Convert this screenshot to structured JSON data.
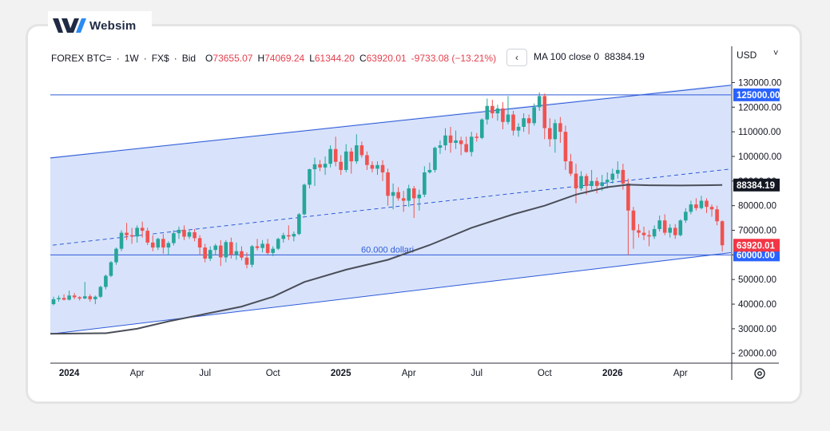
{
  "brand": {
    "name": "Websim"
  },
  "legend": {
    "symbol": "FOREX BTC=",
    "interval": "1W",
    "source": "FX$",
    "price_type": "Bid",
    "o_label": "O",
    "o_value": "73655.07",
    "h_label": "H",
    "h_value": "74069.24",
    "l_label": "L",
    "l_value": "61344.20",
    "c_label": "C",
    "c_value": "63920.01",
    "change": "-9733.08 (−13.21%)"
  },
  "nav": {
    "collapse_icon": "‹"
  },
  "ma_legend": {
    "label": "MA 100 close 0",
    "value": "88384.19"
  },
  "currency": {
    "label": "USD",
    "caret": "˅"
  },
  "colors": {
    "up": "#26a69a",
    "down": "#ef5350",
    "channel_fill": "#d6e2fb",
    "channel_line": "#2f5bd8",
    "ma_line": "#4a4e59",
    "axis_text": "#131722",
    "badge_blue": "#2962ff",
    "badge_black": "#131722",
    "badge_red": "#f23645"
  },
  "chart_data": {
    "type": "candlestick",
    "y_range": [
      17000,
      135000
    ],
    "y_ticks": [
      20000,
      30000,
      40000,
      50000,
      60000,
      70000,
      80000,
      90000,
      100000,
      110000,
      120000,
      130000
    ],
    "y_tick_labels": [
      "20000.00",
      "30000.00",
      "40000.00",
      "50000.00",
      "60000.00",
      "70000.00",
      "80000.00",
      "90000.00",
      "100000.00",
      "110000.00",
      "120000.00",
      "130000.00"
    ],
    "x_labels": [
      {
        "label": "2024",
        "year": true
      },
      {
        "label": "Apr",
        "year": false
      },
      {
        "label": "Jul",
        "year": false
      },
      {
        "label": "Oct",
        "year": false
      },
      {
        "label": "2025",
        "year": true
      },
      {
        "label": "Apr",
        "year": false
      },
      {
        "label": "Jul",
        "year": false
      },
      {
        "label": "Oct",
        "year": false
      },
      {
        "label": "2026",
        "year": true
      },
      {
        "label": "Apr",
        "year": false
      }
    ],
    "x_label_weeks": [
      3,
      16,
      29,
      42,
      55,
      68,
      81,
      94,
      107,
      120
    ],
    "candles": [
      [
        40000,
        43000,
        39500,
        42000
      ],
      [
        42000,
        43500,
        41000,
        42500
      ],
      [
        42500,
        44000,
        41500,
        41800
      ],
      [
        41800,
        45500,
        41500,
        43500
      ],
      [
        43500,
        44500,
        42000,
        42800
      ],
      [
        42800,
        43200,
        41500,
        42300
      ],
      [
        42300,
        49000,
        42000,
        43200
      ],
      [
        43200,
        44000,
        41000,
        42000
      ],
      [
        42000,
        43500,
        40000,
        43000
      ],
      [
        43000,
        47500,
        42500,
        47000
      ],
      [
        47000,
        52000,
        46000,
        51500
      ],
      [
        51500,
        57500,
        51000,
        57000
      ],
      [
        57000,
        63000,
        56000,
        62500
      ],
      [
        62500,
        70000,
        61500,
        69000
      ],
      [
        69000,
        73000,
        66000,
        68000
      ],
      [
        68000,
        71000,
        64500,
        67500
      ],
      [
        67500,
        72000,
        65000,
        71000
      ],
      [
        71000,
        73500,
        67000,
        69800
      ],
      [
        69800,
        71000,
        64000,
        65000
      ],
      [
        65000,
        68000,
        61500,
        63000
      ],
      [
        63000,
        67000,
        62000,
        66500
      ],
      [
        66500,
        68500,
        60500,
        63000
      ],
      [
        63000,
        65500,
        60000,
        64800
      ],
      [
        64800,
        70000,
        63800,
        68800
      ],
      [
        68800,
        71500,
        66500,
        70200
      ],
      [
        70200,
        72000,
        66000,
        67400
      ],
      [
        67400,
        69800,
        66500,
        69200
      ],
      [
        69200,
        70500,
        65500,
        66800
      ],
      [
        66800,
        68000,
        60000,
        63000
      ],
      [
        63000,
        64500,
        57000,
        58500
      ],
      [
        58500,
        63500,
        57500,
        62000
      ],
      [
        62000,
        64500,
        60000,
        63800
      ],
      [
        63800,
        66000,
        55500,
        59000
      ],
      [
        59000,
        66000,
        57000,
        65200
      ],
      [
        65200,
        67000,
        58500,
        60000
      ],
      [
        60000,
        65000,
        58000,
        61500
      ],
      [
        61500,
        63500,
        57800,
        58900
      ],
      [
        58900,
        61000,
        54500,
        56000
      ],
      [
        56000,
        64000,
        55000,
        63500
      ],
      [
        63500,
        66500,
        61800,
        62800
      ],
      [
        62800,
        66000,
        61000,
        64500
      ],
      [
        64500,
        66500,
        60000,
        60800
      ],
      [
        60800,
        63500,
        59500,
        62500
      ],
      [
        62500,
        67000,
        62000,
        66500
      ],
      [
        66500,
        69000,
        65000,
        68000
      ],
      [
        68000,
        72000,
        66000,
        67500
      ],
      [
        67500,
        69500,
        65500,
        68500
      ],
      [
        68500,
        77000,
        68000,
        76500
      ],
      [
        76500,
        89000,
        76000,
        88500
      ],
      [
        88500,
        95000,
        87000,
        94800
      ],
      [
        94800,
        99500,
        88000,
        96800
      ],
      [
        96800,
        98500,
        94000,
        95500
      ],
      [
        95500,
        100000,
        92500,
        97000
      ],
      [
        97000,
        104500,
        95500,
        103000
      ],
      [
        103000,
        108000,
        96000,
        97800
      ],
      [
        97800,
        100500,
        92500,
        94500
      ],
      [
        94500,
        105000,
        93500,
        102000
      ],
      [
        102000,
        103500,
        93000,
        98000
      ],
      [
        98000,
        109000,
        97000,
        104500
      ],
      [
        104500,
        106000,
        99500,
        100500
      ],
      [
        100500,
        102000,
        94500,
        96500
      ],
      [
        96500,
        98000,
        93500,
        95000
      ],
      [
        95000,
        98000,
        92500,
        96500
      ],
      [
        96500,
        98500,
        90000,
        93500
      ],
      [
        93500,
        95000,
        80000,
        84000
      ],
      [
        84000,
        89000,
        78500,
        85500
      ],
      [
        85500,
        87500,
        82000,
        83000
      ],
      [
        83000,
        86000,
        77500,
        82000
      ],
      [
        82000,
        88500,
        79500,
        87000
      ],
      [
        87000,
        88000,
        75000,
        83000
      ],
      [
        83000,
        86500,
        78000,
        84500
      ],
      [
        84500,
        96000,
        83500,
        93500
      ],
      [
        93500,
        97500,
        93000,
        94500
      ],
      [
        94500,
        104000,
        93500,
        103500
      ],
      [
        103500,
        106500,
        101000,
        104500
      ],
      [
        104500,
        111500,
        102500,
        108500
      ],
      [
        108500,
        112000,
        101500,
        105500
      ],
      [
        105500,
        110500,
        103000,
        106500
      ],
      [
        106500,
        108000,
        100500,
        105000
      ],
      [
        105000,
        108000,
        101500,
        101800
      ],
      [
        101800,
        110000,
        100000,
        108000
      ],
      [
        108000,
        109500,
        106000,
        107500
      ],
      [
        107500,
        115500,
        107000,
        115000
      ],
      [
        115000,
        123500,
        113000,
        120500
      ],
      [
        120500,
        123000,
        115500,
        117500
      ],
      [
        117500,
        121000,
        114500,
        119500
      ],
      [
        119500,
        122000,
        111000,
        114000
      ],
      [
        114000,
        124500,
        113000,
        117000
      ],
      [
        117000,
        118500,
        108500,
        110500
      ],
      [
        110500,
        113500,
        108000,
        112000
      ],
      [
        112000,
        117500,
        110000,
        115500
      ],
      [
        115500,
        117000,
        109000,
        113500
      ],
      [
        113500,
        121500,
        112500,
        120000
      ],
      [
        120000,
        126000,
        118500,
        124500
      ],
      [
        124500,
        125500,
        107000,
        111500
      ],
      [
        111500,
        115500,
        104000,
        107000
      ],
      [
        107000,
        115000,
        101500,
        113500
      ],
      [
        113500,
        116000,
        105500,
        110000
      ],
      [
        110000,
        112500,
        94500,
        98000
      ],
      [
        98000,
        101000,
        92000,
        93000
      ],
      [
        93000,
        97000,
        81000,
        87000
      ],
      [
        87000,
        94000,
        86000,
        92000
      ],
      [
        92000,
        93000,
        84500,
        88000
      ],
      [
        88000,
        94500,
        86500,
        90000
      ],
      [
        90000,
        91500,
        85000,
        88000
      ],
      [
        88000,
        92500,
        86000,
        89500
      ],
      [
        89500,
        93500,
        87000,
        90500
      ],
      [
        90500,
        95000,
        89000,
        93000
      ],
      [
        93000,
        98000,
        91000,
        94500
      ],
      [
        94500,
        97000,
        86500,
        89000
      ],
      [
        89000,
        91000,
        60000,
        78000
      ],
      [
        78000,
        79500,
        62500,
        70000
      ],
      [
        70000,
        72500,
        67000,
        69000
      ],
      [
        69000,
        71500,
        66000,
        68000
      ],
      [
        68000,
        70000,
        63500,
        67500
      ],
      [
        67500,
        72000,
        66500,
        70500
      ],
      [
        70500,
        76000,
        69500,
        74000
      ],
      [
        74000,
        76500,
        68000,
        69000
      ],
      [
        69000,
        72500,
        67000,
        71000
      ],
      [
        71000,
        72500,
        66500,
        68000
      ],
      [
        68000,
        74500,
        67500,
        74000
      ],
      [
        74000,
        79000,
        73000,
        77500
      ],
      [
        77500,
        82000,
        76500,
        80500
      ],
      [
        80500,
        83000,
        78000,
        79000
      ],
      [
        79000,
        84000,
        78500,
        82000
      ],
      [
        82000,
        83000,
        77000,
        79500
      ],
      [
        79500,
        80500,
        75500,
        78500
      ],
      [
        78500,
        80000,
        72000,
        73655
      ],
      [
        73655,
        74069,
        61344,
        63920
      ]
    ],
    "ma_series": {
      "name": "MA 100 close 0",
      "points": [
        [
          0,
          28000
        ],
        [
          10,
          28200
        ],
        [
          16,
          30000
        ],
        [
          22,
          33000
        ],
        [
          29,
          36000
        ],
        [
          36,
          39000
        ],
        [
          42,
          43000
        ],
        [
          48,
          49000
        ],
        [
          56,
          54000
        ],
        [
          64,
          58000
        ],
        [
          72,
          64000
        ],
        [
          80,
          71000
        ],
        [
          88,
          76500
        ],
        [
          94,
          80000
        ],
        [
          100,
          84500
        ],
        [
          106,
          87500
        ],
        [
          110,
          88500
        ],
        [
          114,
          88300
        ],
        [
          120,
          88200
        ],
        [
          128,
          88384
        ]
      ]
    },
    "channel": {
      "upper": [
        [
          0,
          99500
        ],
        [
          128,
          128500
        ]
      ],
      "lower": [
        [
          0,
          28000
        ],
        [
          128,
          60500
        ]
      ],
      "middle": [
        [
          0,
          64000
        ],
        [
          128,
          94500
        ]
      ]
    },
    "hlines": [
      {
        "value": 125000,
        "label": "125000.00"
      },
      {
        "value": 60000,
        "label": "60000.00",
        "annotation": "60.000 dollari"
      }
    ],
    "price_badges": [
      {
        "value": 88384.19,
        "label": "88384.19",
        "style": "black"
      },
      {
        "value": 63920.01,
        "label": "63920.01",
        "style": "red"
      }
    ]
  }
}
